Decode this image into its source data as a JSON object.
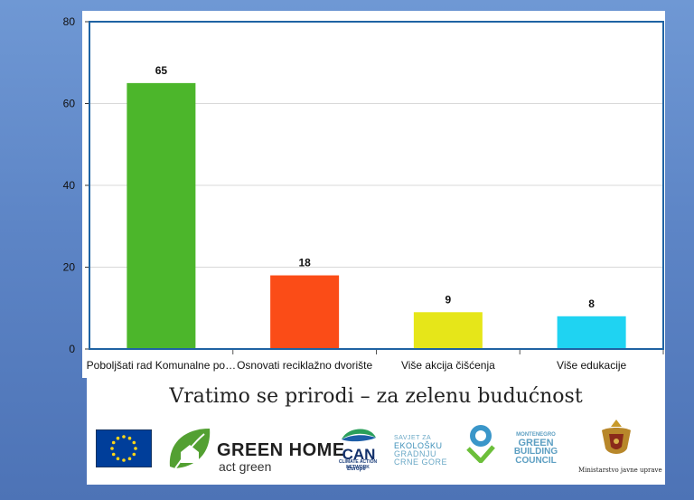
{
  "chart_data": {
    "type": "bar",
    "categories": [
      "Poboljšati rad Komunalne po…",
      "Osnovati reciklažno dvorište",
      "Više akcija čišćenja",
      "Više edukacije"
    ],
    "values": [
      65,
      18,
      9,
      8
    ],
    "data_labels": [
      "65",
      "18",
      "9",
      "8"
    ],
    "colors": [
      "#4cb62b",
      "#fb4c17",
      "#e6e619",
      "#1fd3f2"
    ],
    "ylim": [
      0,
      80
    ],
    "yticks": [
      "0",
      "20",
      "40",
      "60",
      "80"
    ],
    "grid": true,
    "title": "",
    "xlabel": "",
    "ylabel": ""
  },
  "footer": {
    "tagline": "Vratimo se prirodi – za zelenu budućnost",
    "logos": {
      "eu": "eu-flag-logo",
      "green_home": {
        "name": "GREEN HOME",
        "sub": "act green"
      },
      "can": {
        "name": "CAN",
        "sub": "CLIMATE ACTION NETWORK",
        "region": "Europe"
      },
      "savjet": {
        "line1": "SAVJET ZA",
        "line2": "EKOLOŠKU",
        "line3": "GRADNJU",
        "line4": "CRNE GORE"
      },
      "mgbc": {
        "line1": "MONTENEGRO",
        "line2": "GREEN",
        "line3": "BUILDING",
        "line4": "COUNCIL"
      },
      "ministry": {
        "name": "Ministarstvo javne uprave"
      }
    }
  }
}
